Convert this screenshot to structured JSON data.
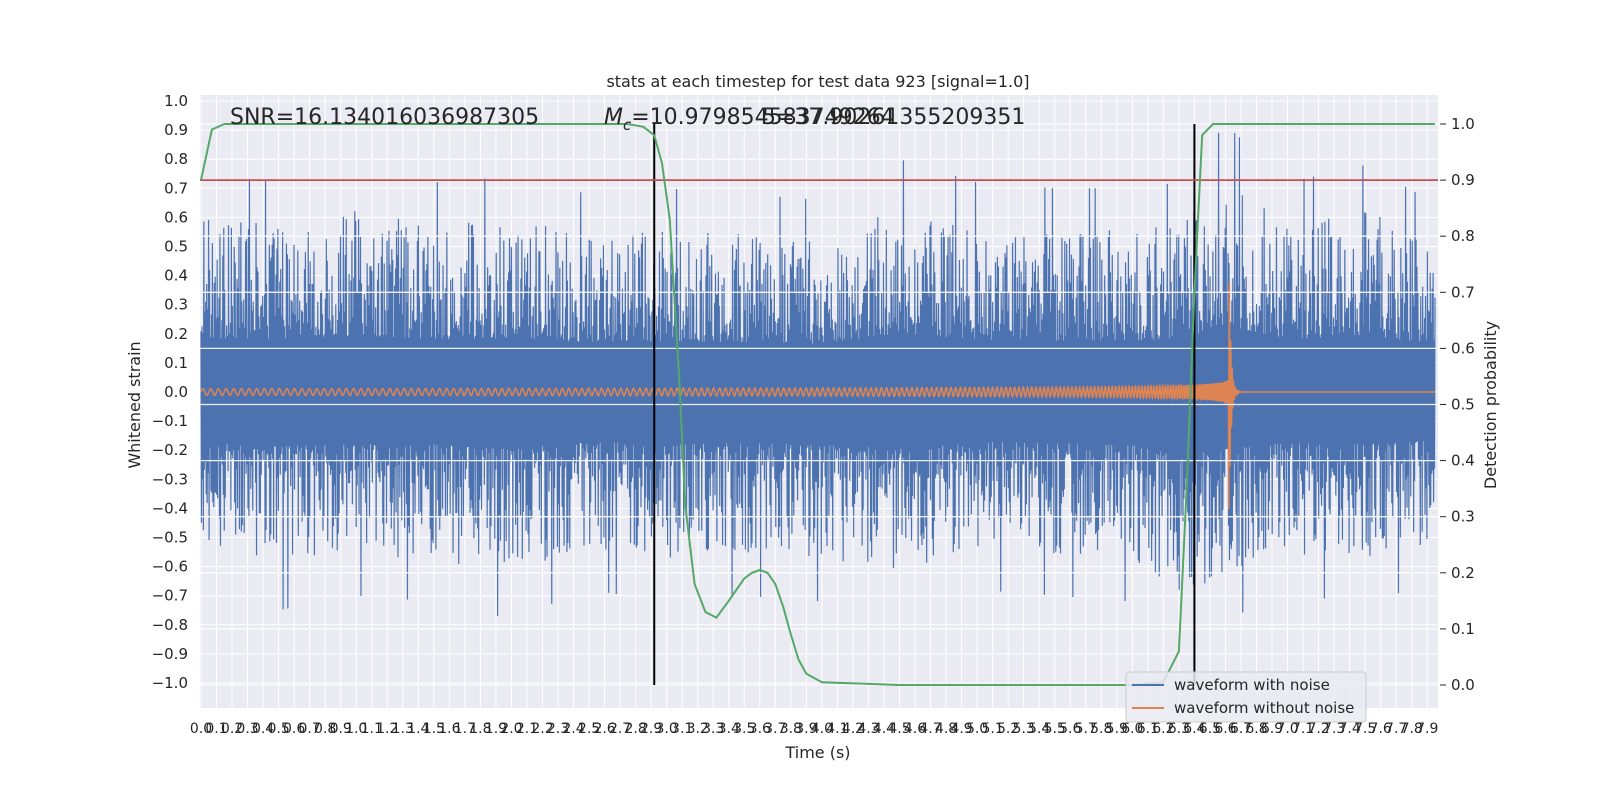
{
  "chart_data": {
    "type": "line",
    "title": "stats at each timestep for test data 923 [signal=1.0]",
    "xlabel": "Time (s)",
    "ylabel": "Whitened strain",
    "y2label": "Detection probability",
    "xlim": [
      0.0,
      7.95
    ],
    "ylim": [
      -1.08,
      1.0
    ],
    "y2lim": [
      -0.05,
      1.04
    ],
    "x_ticks": [
      "0.0",
      "0.1",
      "0.2",
      "0.3",
      "0.4",
      "0.5",
      "0.6",
      "0.7",
      "0.8",
      "0.9",
      "1.0",
      "1.1",
      "1.2",
      "1.3",
      "1.4",
      "1.5",
      "1.6",
      "1.7",
      "1.8",
      "1.9",
      "2.0",
      "2.1",
      "2.2",
      "2.3",
      "2.4",
      "2.5",
      "2.6",
      "2.7",
      "2.8",
      "2.9",
      "3.0",
      "3.1",
      "3.2",
      "3.3",
      "3.4",
      "3.5",
      "3.6",
      "3.7",
      "3.8",
      "3.9",
      "4.0",
      "4.1",
      "4.2",
      "4.3",
      "4.4",
      "4.5",
      "4.6",
      "4.7",
      "4.8",
      "4.9",
      "5.0",
      "5.1",
      "5.2",
      "5.3",
      "5.4",
      "5.5",
      "5.6",
      "5.7",
      "5.8",
      "5.9",
      "6.0",
      "6.1",
      "6.2",
      "6.3",
      "6.4",
      "6.5",
      "6.6",
      "6.7",
      "6.8",
      "6.9",
      "7.0",
      "7.1",
      "7.2",
      "7.3",
      "7.4",
      "7.5",
      "7.6",
      "7.7",
      "7.8",
      "7.9"
    ],
    "y_ticks": [
      "1.0",
      "0.9",
      "0.8",
      "0.7",
      "0.6",
      "0.5",
      "0.4",
      "0.3",
      "0.2",
      "0.1",
      "0.0",
      "−0.1",
      "−0.2",
      "−0.3",
      "−0.4",
      "−0.5",
      "−0.6",
      "−0.7",
      "−0.8",
      "−0.9",
      "−1.0"
    ],
    "y2_ticks": [
      "1.0",
      "0.9",
      "0.8",
      "0.7",
      "0.6",
      "0.5",
      "0.4",
      "0.3",
      "0.2",
      "0.1",
      "0.0"
    ],
    "annotations": {
      "snr": "SNR=16.134016036987305",
      "mc_prefix": "M",
      "mc_sub": "c",
      "mc_value": "=10.979854583749264",
      "overlap": "5=37.90261355209351"
    },
    "threshold_y2": 0.9,
    "vlines_x": [
      2.92,
      6.4
    ],
    "noise_envelope": {
      "x": [
        0.0,
        0.5,
        1.0,
        1.5,
        2.0,
        2.5,
        3.0,
        3.5,
        4.0,
        4.5,
        5.0,
        5.5,
        6.0,
        6.3,
        6.6,
        7.0,
        7.5,
        7.95
      ],
      "upper": [
        0.75,
        0.72,
        0.78,
        0.72,
        0.74,
        0.68,
        0.7,
        0.68,
        0.66,
        0.8,
        0.72,
        0.7,
        0.7,
        0.72,
        0.92,
        0.72,
        0.78,
        0.65
      ],
      "lower": [
        -0.7,
        -0.75,
        -0.7,
        -0.72,
        -0.78,
        -0.68,
        -0.72,
        -0.7,
        -0.72,
        -0.78,
        -0.68,
        -0.7,
        -0.72,
        -0.88,
        -0.78,
        -0.7,
        -0.72,
        -0.66
      ]
    },
    "series": [
      {
        "name": "waveform with noise",
        "color": "#4c72b0"
      },
      {
        "name": "waveform without noise",
        "color": "#dd8452"
      },
      {
        "color": "#55a868",
        "x": [
          0.0,
          0.07,
          0.15,
          0.25,
          0.5,
          1.0,
          1.5,
          2.0,
          2.5,
          2.75,
          2.85,
          2.92,
          2.97,
          3.02,
          3.08,
          3.12,
          3.18,
          3.25,
          3.32,
          3.4,
          3.45,
          3.5,
          3.55,
          3.6,
          3.65,
          3.7,
          3.75,
          3.8,
          3.85,
          3.9,
          4.0,
          4.5,
          5.0,
          5.5,
          6.0,
          6.2,
          6.3,
          6.35,
          6.4,
          6.45,
          6.52,
          6.62,
          7.0,
          7.5,
          7.95
        ],
        "y": [
          0.9,
          0.99,
          1.0,
          1.0,
          1.0,
          1.0,
          1.0,
          1.0,
          1.0,
          1.0,
          0.995,
          0.98,
          0.93,
          0.83,
          0.55,
          0.32,
          0.18,
          0.13,
          0.12,
          0.15,
          0.17,
          0.19,
          0.2,
          0.205,
          0.2,
          0.18,
          0.14,
          0.09,
          0.045,
          0.02,
          0.005,
          0.0,
          0.0,
          0.0,
          0.0,
          0.005,
          0.06,
          0.35,
          0.7,
          0.98,
          1.0,
          1.0,
          1.0,
          1.0,
          1.0
        ]
      }
    ],
    "signal": {
      "start_x": 0.0,
      "merger_x": 6.62,
      "end_x": 7.95,
      "start_amp": 0.02,
      "peak_amp": 0.58,
      "start_freq": 20,
      "end_freq": 110
    },
    "legend_position": "lower-right",
    "grid": true
  }
}
